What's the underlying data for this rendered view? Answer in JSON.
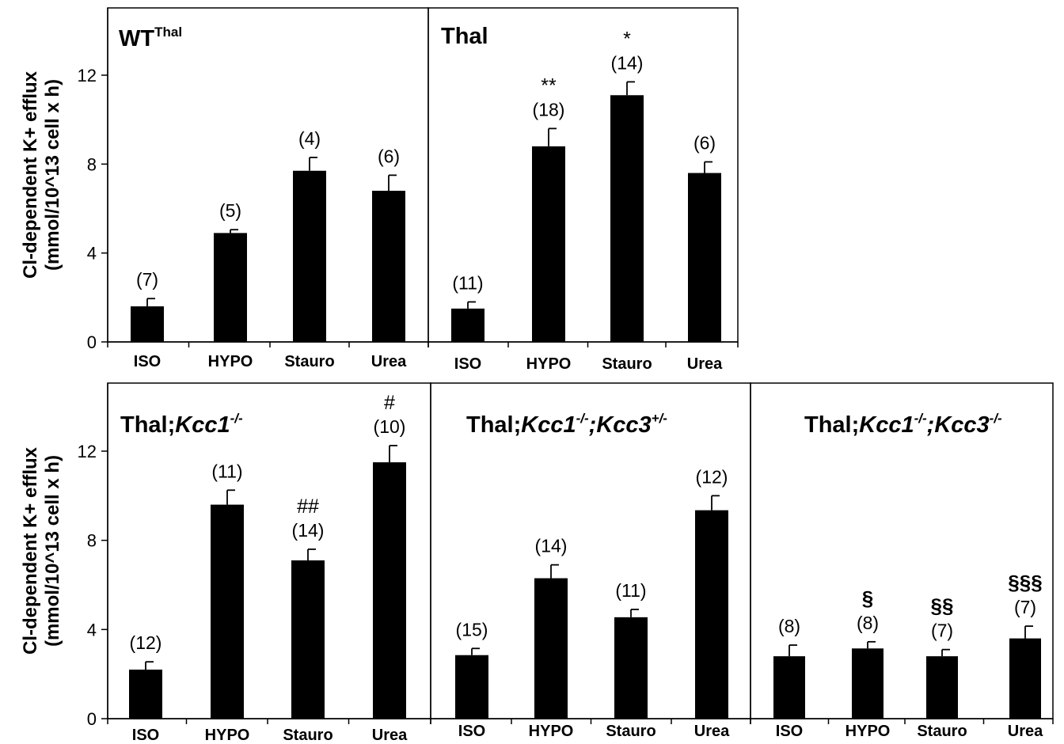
{
  "chart_data": [
    {
      "type": "bar",
      "title": "WT",
      "title_superscript": "Thal",
      "ylabel_line1": "Cl-dependent K+ efflux",
      "ylabel_line2": "(mmol/10^13 cell x h)",
      "ylim": [
        0,
        12
      ],
      "yticks": [
        "0",
        "4",
        "8",
        "12"
      ],
      "categories": [
        "ISO",
        "HYPO",
        "Stauro",
        "Urea"
      ],
      "values": [
        1.6,
        4.9,
        7.7,
        6.8
      ],
      "errors": [
        0.35,
        0.15,
        0.6,
        0.7
      ],
      "n_labels": [
        "(7)",
        "(5)",
        "(4)",
        "(6)"
      ],
      "significance": [
        "",
        "",
        "",
        ""
      ]
    },
    {
      "type": "bar",
      "title": "Thal",
      "ylim": [
        0,
        12
      ],
      "categories": [
        "ISO",
        "HYPO",
        "Stauro",
        "Urea"
      ],
      "values": [
        1.5,
        8.8,
        11.1,
        7.6
      ],
      "errors": [
        0.3,
        0.8,
        0.6,
        0.5
      ],
      "n_labels": [
        "(11)",
        "(18)",
        "(14)",
        "(6)"
      ],
      "significance": [
        "",
        "**",
        "*",
        ""
      ]
    },
    {
      "type": "bar",
      "title": "Thal;",
      "title_italic": "Kcc1",
      "title_superscript": "-/-",
      "ylabel_line1": "Cl-dependent K+ efflux",
      "ylabel_line2": "(mmol/10^13 cell x h)",
      "ylim": [
        0,
        12
      ],
      "yticks": [
        "0",
        "4",
        "8",
        "12"
      ],
      "categories": [
        "ISO",
        "HYPO",
        "Stauro",
        "Urea"
      ],
      "values": [
        2.2,
        9.6,
        7.1,
        11.5
      ],
      "errors": [
        0.35,
        0.65,
        0.5,
        0.75
      ],
      "n_labels": [
        "(12)",
        "(11)",
        "(14)",
        "(10)"
      ],
      "significance": [
        "",
        "",
        "##",
        "#"
      ]
    },
    {
      "type": "bar",
      "title": "Thal;",
      "title_italic": "Kcc1",
      "title_superscript": "-/-",
      "title_part2_italic": ";Kcc3",
      "title_superscript2": "+/-",
      "ylim": [
        0,
        12
      ],
      "categories": [
        "ISO",
        "HYPO",
        "Stauro",
        "Urea"
      ],
      "values": [
        2.85,
        6.3,
        4.55,
        9.35
      ],
      "errors": [
        0.3,
        0.6,
        0.35,
        0.65
      ],
      "n_labels": [
        "(15)",
        "(14)",
        "(11)",
        "(12)"
      ],
      "significance": [
        "",
        "",
        "",
        ""
      ]
    },
    {
      "type": "bar",
      "title": "Thal;",
      "title_italic": "Kcc1",
      "title_superscript": "-/-",
      "title_part2_italic": ";Kcc3",
      "title_superscript2": "-/-",
      "ylim": [
        0,
        12
      ],
      "categories": [
        "ISO",
        "HYPO",
        "Stauro",
        "Urea"
      ],
      "values": [
        2.8,
        3.15,
        2.8,
        3.6
      ],
      "errors": [
        0.5,
        0.3,
        0.3,
        0.55
      ],
      "n_labels": [
        "(8)",
        "(8)",
        "(7)",
        "(7)"
      ],
      "significance": [
        "",
        "§",
        "§§",
        "§§§"
      ]
    }
  ]
}
